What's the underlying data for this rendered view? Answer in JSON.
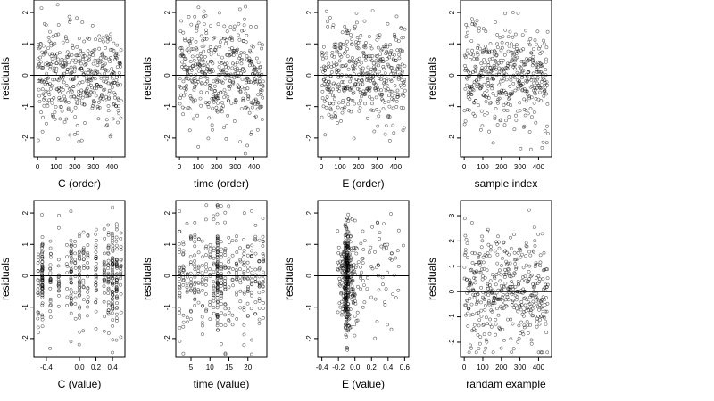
{
  "chart_data": [
    {
      "type": "scatter",
      "xlabel": "C (order)",
      "ylabel": "residuals",
      "xlim": [
        -20,
        470
      ],
      "ylim": [
        -2.6,
        2.4
      ],
      "xticks": [
        0,
        100,
        200,
        300,
        400
      ],
      "xtick_labels": [
        "0",
        "100",
        "200",
        "300",
        "400"
      ],
      "yticks": [
        -2,
        -1,
        0,
        1,
        2
      ],
      "ytick_labels": [
        "-2",
        "-1",
        "0",
        "1",
        "2"
      ],
      "reference_line_y": 0,
      "point_count": 450,
      "x_distribution": "index 1 to 450",
      "y_distribution": "residuals centred at 0, mostly within -1.5 to 1.5, extremes about -2.5 and 2.2"
    },
    {
      "type": "scatter",
      "xlabel": "time (order)",
      "ylabel": "residuals",
      "xlim": [
        -20,
        470
      ],
      "ylim": [
        -2.6,
        2.4
      ],
      "xticks": [
        0,
        100,
        200,
        300,
        400
      ],
      "xtick_labels": [
        "0",
        "100",
        "200",
        "300",
        "400"
      ],
      "yticks": [
        -2,
        -1,
        0,
        1,
        2
      ],
      "ytick_labels": [
        "-2",
        "-1",
        "0",
        "1",
        "2"
      ],
      "reference_line_y": 0,
      "point_count": 450,
      "x_distribution": "index 1 to 450",
      "y_distribution": "residuals centred at 0, mostly within -1.5 to 1.5"
    },
    {
      "type": "scatter",
      "xlabel": "E (order)",
      "ylabel": "residuals",
      "xlim": [
        -20,
        470
      ],
      "ylim": [
        -2.6,
        2.4
      ],
      "xticks": [
        0,
        100,
        200,
        300,
        400
      ],
      "xtick_labels": [
        "0",
        "100",
        "200",
        "300",
        "400"
      ],
      "yticks": [
        -2,
        -1,
        0,
        1,
        2
      ],
      "ytick_labels": [
        "-2",
        "-1",
        "0",
        "1",
        "2"
      ],
      "reference_line_y": 0,
      "point_count": 450,
      "x_distribution": "index 1 to 450",
      "y_distribution": "residuals centred at 0, mostly within -1.5 to 1.5"
    },
    {
      "type": "scatter",
      "xlabel": "sample index",
      "ylabel": "residuals",
      "xlim": [
        -20,
        470
      ],
      "ylim": [
        -2.6,
        2.4
      ],
      "xticks": [
        0,
        100,
        200,
        300,
        400
      ],
      "xtick_labels": [
        "0",
        "100",
        "200",
        "300",
        "400"
      ],
      "yticks": [
        -2,
        -1,
        0,
        1,
        2
      ],
      "ytick_labels": [
        "-2",
        "-1",
        "0",
        "1",
        "2"
      ],
      "reference_line_y": 0,
      "point_count": 450,
      "x_distribution": "index 1 to 450",
      "y_distribution": "residuals centred at 0, mostly within -1.5 to 1.5"
    },
    {
      "type": "scatter",
      "xlabel": "C (value)",
      "ylabel": "residuals",
      "xlim": [
        -0.55,
        0.55
      ],
      "ylim": [
        -2.6,
        2.4
      ],
      "xticks": [
        -0.4,
        0.0,
        0.2,
        0.4
      ],
      "xtick_labels": [
        "-0.4",
        "0.0",
        "0.2",
        "0.4"
      ],
      "yticks": [
        -2,
        -1,
        0,
        1,
        2
      ],
      "ytick_labels": [
        "-2",
        "-1",
        "0",
        "1",
        "2"
      ],
      "reference_line_y": 0,
      "point_count": 450,
      "x_distribution": "discrete levels between -0.5 and 0.5, dense columns near -0.45, -0.1 and 0.4",
      "y_distribution": "residuals centred at 0, mostly within -1.5 to 1.5"
    },
    {
      "type": "scatter",
      "xlabel": "time (value)",
      "ylabel": "residuals",
      "xlim": [
        1,
        25
      ],
      "ylim": [
        -2.6,
        2.4
      ],
      "xticks": [
        5,
        10,
        15,
        20
      ],
      "xtick_labels": [
        "5",
        "10",
        "15",
        "20"
      ],
      "yticks": [
        -2,
        -1,
        0,
        1,
        2
      ],
      "ytick_labels": [
        "-2",
        "-1",
        "0",
        "1",
        "2"
      ],
      "reference_line_y": 0,
      "point_count": 450,
      "x_distribution": "integer values 2 to 24, dense column at 12",
      "y_distribution": "residuals centred at 0, mostly within -1.5 to 1.5"
    },
    {
      "type": "scatter",
      "xlabel": "E (value)",
      "ylabel": "residuals",
      "xlim": [
        -0.45,
        0.65
      ],
      "ylim": [
        -2.6,
        2.4
      ],
      "xticks": [
        -0.4,
        -0.2,
        0.0,
        0.2,
        0.4,
        0.6
      ],
      "xtick_labels": [
        "-0.4",
        "-0.2",
        "0.0",
        "0.2",
        "0.4",
        "0.6"
      ],
      "yticks": [
        -2,
        -1,
        0,
        1,
        2
      ],
      "ytick_labels": [
        "-2",
        "-1",
        "0",
        "1",
        "2"
      ],
      "reference_line_y": 0,
      "point_count": 450,
      "x_distribution": "concentrated near -0.1 with a dense vertical band at -0.12 to -0.08, sparse tail to 0.6",
      "y_distribution": "residuals centred at 0, mostly within -1.5 to 1.5"
    },
    {
      "type": "scatter",
      "xlabel": "randam example",
      "ylabel": "residuals",
      "xlim": [
        -20,
        470
      ],
      "ylim": [
        -2.6,
        3.6
      ],
      "xticks": [
        0,
        100,
        200,
        300,
        400
      ],
      "xtick_labels": [
        "0",
        "100",
        "200",
        "300",
        "400"
      ],
      "yticks": [
        -2,
        -1,
        0,
        1,
        2,
        3
      ],
      "ytick_labels": [
        "-2",
        "-1",
        "0",
        "1",
        "2",
        "3"
      ],
      "reference_line_y": 0,
      "point_count": 450,
      "x_distribution": "index 1 to 450",
      "y_distribution": "random values mostly between -2.2 and 2.5, extremes about 3.4"
    }
  ]
}
